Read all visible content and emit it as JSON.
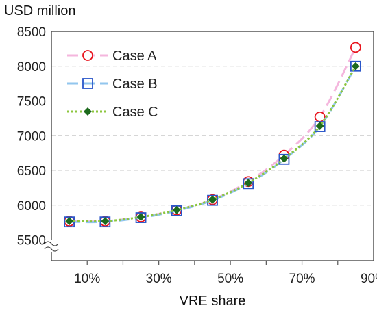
{
  "chart_data": {
    "type": "line",
    "title": "",
    "ylabel": "USD million",
    "xlabel": "VRE share",
    "x": [
      5,
      15,
      25,
      35,
      45,
      55,
      65,
      75,
      85
    ],
    "x_ticks": [
      10,
      30,
      50,
      70,
      90
    ],
    "x_tick_labels": [
      "10%",
      "30%",
      "50%",
      "70%",
      "90%"
    ],
    "xlim": [
      0,
      90
    ],
    "ylim": [
      5200,
      8500
    ],
    "y_ticks": [
      5500,
      6000,
      6500,
      7000,
      7500,
      8000,
      8500
    ],
    "y_tick_labels": [
      "5500",
      "6000",
      "6500",
      "7000",
      "7500",
      "8000",
      "8500"
    ],
    "axis_break": true,
    "grid": "horizontal dashed",
    "legend_position": "top-left",
    "series": [
      {
        "name": "Case A",
        "values": [
          5770,
          5770,
          5830,
          5930,
          6080,
          6340,
          6720,
          7270,
          8270
        ],
        "color": "#f4b6dd",
        "marker": "open-circle",
        "marker_color": "#e8141d",
        "line_style": "dashed"
      },
      {
        "name": "Case B",
        "values": [
          5760,
          5760,
          5820,
          5920,
          6070,
          6310,
          6660,
          7130,
          8000
        ],
        "color": "#92c6ee",
        "marker": "open-square",
        "marker_color": "#2a56c9",
        "line_style": "dashed"
      },
      {
        "name": "Case C",
        "values": [
          5770,
          5770,
          5830,
          5930,
          6080,
          6320,
          6670,
          7140,
          8000
        ],
        "color": "#8cc63e",
        "marker": "filled-diamond",
        "marker_color": "#1d6a1d",
        "line_style": "dotted"
      }
    ]
  }
}
